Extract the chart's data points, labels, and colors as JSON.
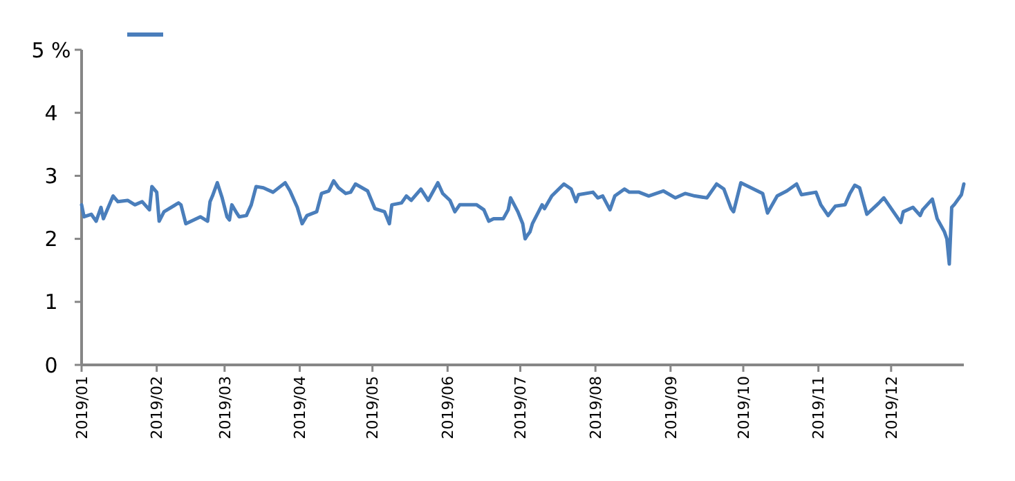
{
  "chart_data": {
    "type": "line",
    "grid": false,
    "xlim": [
      "2019-01-01",
      "2019-12-31"
    ],
    "xticks": [
      {
        "value": "2019-01",
        "label": "2019/01"
      },
      {
        "value": "2019-02",
        "label": "2019/02"
      },
      {
        "value": "2019-03",
        "label": "2019/03"
      },
      {
        "value": "2019-04",
        "label": "2019/04"
      },
      {
        "value": "2019-05",
        "label": "2019/05"
      },
      {
        "value": "2019-06",
        "label": "2019/06"
      },
      {
        "value": "2019-07",
        "label": "2019/07"
      },
      {
        "value": "2019-08",
        "label": "2019/08"
      },
      {
        "value": "2019-09",
        "label": "2019/09"
      },
      {
        "value": "2019-10",
        "label": "2019/10"
      },
      {
        "value": "2019-11",
        "label": "2019/11"
      },
      {
        "value": "2019-12",
        "label": "2019/12"
      }
    ],
    "ylim": [
      0,
      5
    ],
    "yticks": [
      0,
      1,
      2,
      3,
      4,
      {
        "value": 5,
        "label": "5 %"
      }
    ],
    "x": [
      "2019-01-01",
      "2019-01-02",
      "2019-01-05",
      "2019-01-07",
      "2019-01-09",
      "2019-01-10",
      "2019-01-14",
      "2019-01-16",
      "2019-01-20",
      "2019-01-23",
      "2019-01-26",
      "2019-01-29",
      "2019-01-30",
      "2019-02-01",
      "2019-02-02",
      "2019-02-04",
      "2019-02-10",
      "2019-02-11",
      "2019-02-13",
      "2019-02-19",
      "2019-02-22",
      "2019-02-23",
      "2019-02-24",
      "2019-02-26",
      "2019-02-28",
      "2019-03-02",
      "2019-03-03",
      "2019-03-04",
      "2019-03-06",
      "2019-03-07",
      "2019-03-10",
      "2019-03-12",
      "2019-03-14",
      "2019-03-17",
      "2019-03-21",
      "2019-03-24",
      "2019-03-26",
      "2019-03-28",
      "2019-03-31",
      "2019-04-02",
      "2019-04-04",
      "2019-04-08",
      "2019-04-10",
      "2019-04-13",
      "2019-04-15",
      "2019-04-17",
      "2019-04-20",
      "2019-04-22",
      "2019-04-24",
      "2019-04-29",
      "2019-05-02",
      "2019-05-06",
      "2019-05-08",
      "2019-05-09",
      "2019-05-13",
      "2019-05-15",
      "2019-05-17",
      "2019-05-21",
      "2019-05-24",
      "2019-05-28",
      "2019-05-30",
      "2019-06-02",
      "2019-06-04",
      "2019-06-06",
      "2019-06-13",
      "2019-06-16",
      "2019-06-18",
      "2019-06-20",
      "2019-06-24",
      "2019-06-26",
      "2019-06-27",
      "2019-06-30",
      "2019-07-02",
      "2019-07-03",
      "2019-07-04",
      "2019-07-05",
      "2019-07-06",
      "2019-07-10",
      "2019-07-11",
      "2019-07-14",
      "2019-07-19",
      "2019-07-22",
      "2019-07-24",
      "2019-07-25",
      "2019-07-31",
      "2019-08-02",
      "2019-08-04",
      "2019-08-07",
      "2019-08-09",
      "2019-08-13",
      "2019-08-15",
      "2019-08-19",
      "2019-08-23",
      "2019-08-29",
      "2019-09-03",
      "2019-09-07",
      "2019-09-11",
      "2019-09-16",
      "2019-09-20",
      "2019-09-23",
      "2019-09-26",
      "2019-09-27",
      "2019-09-30",
      "2019-10-09",
      "2019-10-11",
      "2019-10-15",
      "2019-10-19",
      "2019-10-23",
      "2019-10-25",
      "2019-10-31",
      "2019-11-02",
      "2019-11-05",
      "2019-11-08",
      "2019-11-12",
      "2019-11-14",
      "2019-11-16",
      "2019-11-18",
      "2019-11-21",
      "2019-11-26",
      "2019-11-28",
      "2019-12-05",
      "2019-12-06",
      "2019-12-10",
      "2019-12-13",
      "2019-12-14",
      "2019-12-18",
      "2019-12-20",
      "2019-12-23",
      "2019-12-24",
      "2019-12-25",
      "2019-12-26",
      "2019-12-27",
      "2019-12-30",
      "2019-12-31"
    ],
    "series": [
      {
        "color": "#4a7ebb",
        "values": [
          2.54,
          2.35,
          2.39,
          2.28,
          2.5,
          2.32,
          2.68,
          2.59,
          2.61,
          2.54,
          2.59,
          2.46,
          2.83,
          2.74,
          2.28,
          2.43,
          2.57,
          2.54,
          2.24,
          2.35,
          2.28,
          2.59,
          2.68,
          2.89,
          2.65,
          2.35,
          2.3,
          2.54,
          2.41,
          2.35,
          2.37,
          2.54,
          2.83,
          2.81,
          2.74,
          2.83,
          2.89,
          2.76,
          2.5,
          2.24,
          2.37,
          2.43,
          2.72,
          2.76,
          2.92,
          2.81,
          2.72,
          2.74,
          2.87,
          2.76,
          2.48,
          2.43,
          2.24,
          2.54,
          2.57,
          2.68,
          2.61,
          2.79,
          2.61,
          2.89,
          2.72,
          2.61,
          2.43,
          2.54,
          2.54,
          2.46,
          2.28,
          2.32,
          2.32,
          2.46,
          2.65,
          2.43,
          2.24,
          2.0,
          2.06,
          2.11,
          2.24,
          2.54,
          2.48,
          2.68,
          2.87,
          2.79,
          2.59,
          2.7,
          2.74,
          2.65,
          2.68,
          2.46,
          2.68,
          2.79,
          2.74,
          2.74,
          2.68,
          2.76,
          2.65,
          2.72,
          2.68,
          2.65,
          2.87,
          2.79,
          2.48,
          2.43,
          2.89,
          2.72,
          2.41,
          2.68,
          2.76,
          2.87,
          2.7,
          2.74,
          2.54,
          2.37,
          2.52,
          2.54,
          2.72,
          2.85,
          2.81,
          2.39,
          2.57,
          2.65,
          2.26,
          2.43,
          2.5,
          2.37,
          2.46,
          2.63,
          2.32,
          2.11,
          2.0,
          1.6,
          2.5,
          2.54,
          2.7,
          2.87
        ]
      }
    ]
  }
}
